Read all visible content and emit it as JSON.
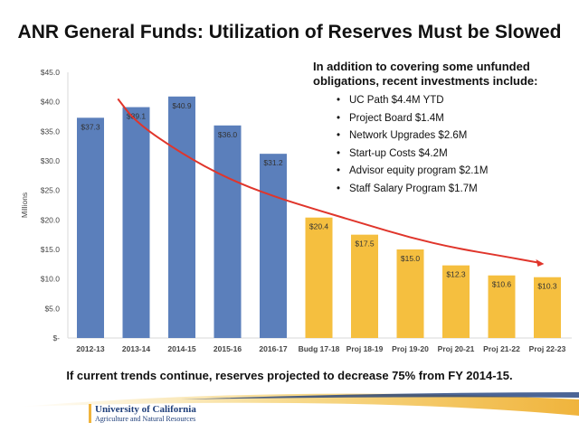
{
  "title": "ANR General Funds: Utilization of Reserves Must be Slowed",
  "info": {
    "heading": "In addition to covering some unfunded obligations, recent investments include:",
    "items": [
      "UC Path $4.4M YTD",
      "Project Board $1.4M",
      "Network Upgrades $2.6M",
      "Start-up Costs $4.2M",
      "Advisor equity program $2.1M",
      "Staff Salary Program $1.7M"
    ]
  },
  "footer_note": "If current trends continue, reserves projected to decrease 75% from FY 2014-15.",
  "logo": {
    "line1": "University of California",
    "line2": "Agriculture and Natural Resources"
  },
  "chart_data": {
    "type": "bar",
    "title": "",
    "xlabel": "",
    "ylabel": "Millions",
    "ylim": [
      0,
      45
    ],
    "yticks": [
      "$-",
      "$5.0",
      "$10.0",
      "$15.0",
      "$20.0",
      "$25.0",
      "$30.0",
      "$35.0",
      "$40.0",
      "$45.0"
    ],
    "grid": false,
    "categories": [
      "2012-13",
      "2013-14",
      "2014-15",
      "2015-16",
      "2016-17",
      "Budg 17-18",
      "Proj 18-19",
      "Proj 19-20",
      "Proj 20-21",
      "Proj 21-22",
      "Proj 22-23"
    ],
    "values": [
      37.3,
      39.1,
      40.9,
      36.0,
      31.2,
      20.4,
      17.5,
      15.0,
      12.3,
      10.6,
      10.3
    ],
    "data_labels": [
      "$37.3",
      "$39.1",
      "$40.9",
      "$36.0",
      "$31.2",
      "$20.4",
      "$17.5",
      "$15.0",
      "$12.3",
      "$10.6",
      "$10.3"
    ],
    "bar_colors": [
      "#5b7fbb",
      "#5b7fbb",
      "#5b7fbb",
      "#5b7fbb",
      "#5b7fbb",
      "#f5bf3f",
      "#f5bf3f",
      "#f5bf3f",
      "#f5bf3f",
      "#f5bf3f",
      "#f5bf3f"
    ],
    "trend_line": {
      "color": "#e0352b",
      "arrow": true,
      "points": [
        [
          0.6,
          40.5
        ],
        [
          1,
          36.5
        ],
        [
          2,
          31.2
        ],
        [
          3,
          27.0
        ],
        [
          4,
          24.0
        ],
        [
          5,
          21.6
        ],
        [
          6,
          19.3
        ],
        [
          7,
          17.0
        ],
        [
          8,
          15.2
        ],
        [
          9,
          13.9
        ],
        [
          9.85,
          12.7
        ]
      ]
    }
  }
}
